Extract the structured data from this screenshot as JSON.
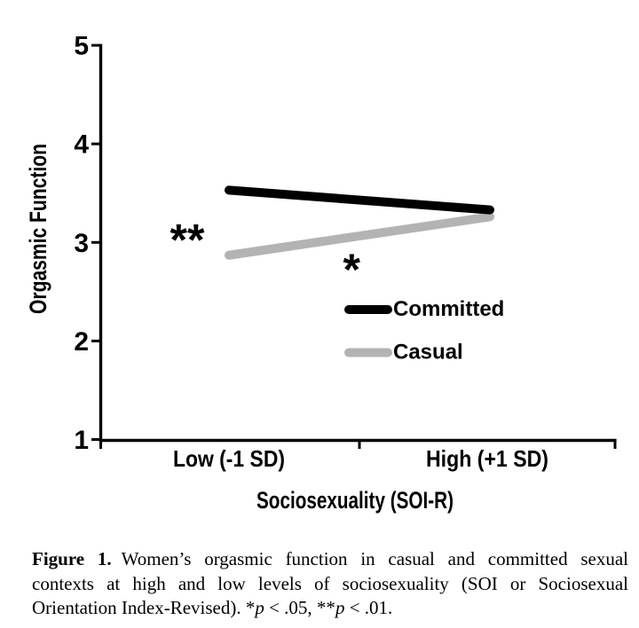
{
  "figure": {
    "chart_data": {
      "type": "line",
      "xlabel": "Sociosexuality (SOI-R)",
      "ylabel": "Orgasmic Function",
      "categories": [
        "Low (-1 SD)",
        "High (+1 SD)"
      ],
      "ylim": [
        1,
        5
      ],
      "y_ticks": [
        1,
        2,
        3,
        4,
        5
      ],
      "grid": false,
      "legend_position": "inside-lower-right",
      "series": [
        {
          "name": "Committed",
          "color": "#000000",
          "values": [
            3.53,
            3.33
          ]
        },
        {
          "name": "Casual",
          "color": "#b3b3b3",
          "values": [
            2.87,
            3.26
          ]
        }
      ],
      "annotations": [
        {
          "text": "**",
          "x": -0.16,
          "y": 3.1
        },
        {
          "text": "*",
          "x": 0.47,
          "y": 2.8
        }
      ]
    },
    "caption": {
      "lines": [
        {
          "full": true,
          "segments": [
            {
              "t": "Figure 1.",
              "b": 1,
              "lead": 1
            },
            {
              "t": "Women’s orgasmic function in casual and committed sexual"
            }
          ]
        },
        {
          "full": true,
          "segments": [
            {
              "t": "contexts at high and low levels of sociosexuality (SOI or Sociosexual"
            }
          ]
        },
        {
          "full": false,
          "segments": [
            {
              "t": "Orientation Index-Revised). *"
            },
            {
              "t": "p",
              "i": 1
            },
            {
              "t": " < .05, **"
            },
            {
              "t": "p",
              "i": 1
            },
            {
              "t": " < .01."
            }
          ]
        }
      ]
    }
  },
  "colors": {
    "background": "#ffffff",
    "axis": "#000000",
    "casual_gray": "#b3b3b3"
  }
}
